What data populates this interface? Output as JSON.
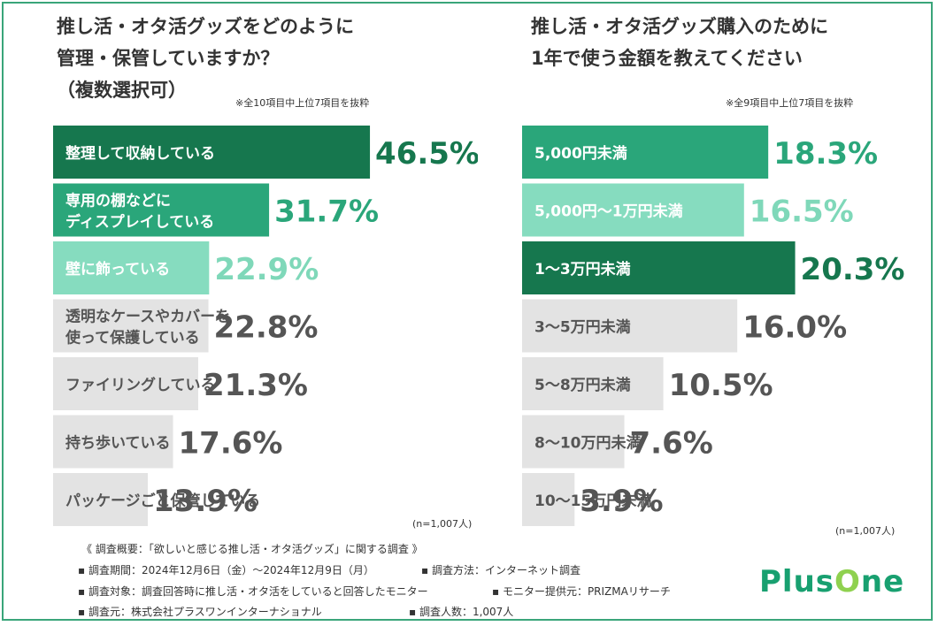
{
  "chart_data": [
    {
      "type": "bar",
      "orientation": "horizontal",
      "title": [
        "推し活・オタ活グッズをどのように",
        "管理・保管していますか？",
        "（複数選択可）"
      ],
      "note": "※全10項目中上位7項目を抜粋",
      "sample": "(n=1,007人)",
      "categories": [
        [
          "整理して収納している"
        ],
        [
          "専用の棚などに",
          "ディスプレイしている"
        ],
        [
          "壁に飾っている"
        ],
        [
          "透明なケースやカバーを",
          "使って保護している"
        ],
        [
          "ファイリングしている"
        ],
        [
          "持ち歩いている"
        ],
        [
          "パッケージごと保管している"
        ]
      ],
      "values": [
        46.5,
        31.7,
        22.9,
        22.8,
        21.3,
        17.6,
        13.9
      ],
      "value_labels": [
        "46.5%",
        "31.7%",
        "22.9%",
        "22.8%",
        "21.3%",
        "17.6%",
        "13.9%"
      ],
      "colors": [
        "#16774e",
        "#2aa67a",
        "#86dcbf",
        "#e3e3e3",
        "#e3e3e3",
        "#e3e3e3",
        "#e3e3e3"
      ],
      "label_colors": [
        "#ffffff",
        "#ffffff",
        "#ffffff",
        "#555555",
        "#555555",
        "#555555",
        "#555555"
      ],
      "value_colors": [
        "#16774e",
        "#2aa67a",
        "#7fd8b9",
        "#555555",
        "#555555",
        "#555555",
        "#555555"
      ]
    },
    {
      "type": "bar",
      "orientation": "horizontal",
      "title": [
        "推し活・オタ活グッズ購入のために",
        "1年で使う金額を教えてください"
      ],
      "note": "※全9項目中上位7項目を抜粋",
      "sample": "(n=1,007人)",
      "categories": [
        [
          "5,000円未満"
        ],
        [
          "5,000円〜1万円未満"
        ],
        [
          "1〜3万円未満"
        ],
        [
          "3〜5万円未満"
        ],
        [
          "5〜8万円未満"
        ],
        [
          "8〜10万円未満"
        ],
        [
          "10〜15万円未満"
        ]
      ],
      "values": [
        18.3,
        16.5,
        20.3,
        16.0,
        10.5,
        7.6,
        3.9
      ],
      "value_labels": [
        "18.3%",
        "16.5%",
        "20.3%",
        "16.0%",
        "10.5%",
        "7.6%",
        "3.9%"
      ],
      "colors": [
        "#2aa67a",
        "#86dcbf",
        "#16774e",
        "#e3e3e3",
        "#e3e3e3",
        "#e3e3e3",
        "#e3e3e3"
      ],
      "label_colors": [
        "#ffffff",
        "#ffffff",
        "#ffffff",
        "#555555",
        "#555555",
        "#555555",
        "#555555"
      ],
      "value_colors": [
        "#2aa67a",
        "#7fd8b9",
        "#16774e",
        "#555555",
        "#555555",
        "#555555",
        "#555555"
      ]
    }
  ],
  "footer": {
    "l1": "《 調査概要：「欲しいと感じる推し活・オタ活グッズ」に関する調査 》",
    "l2a": "▪ 調査期間：2024年12月6日（金）〜2024年12月9日（月）",
    "l2b": "▪ 調査方法：インターネット調査",
    "l3a": "▪ 調査対象：調査回答時に推し活・オタ活をしていると回答したモニター",
    "l3b": "▪ モニター提供元：PRIZMAリサーチ",
    "l4a": "▪ 調査元：株式会社プラスワンインターナショナル",
    "l4b": "▪ 調査人数：1,007人"
  },
  "logo": {
    "text_plus": "Plus",
    "text_o": "O",
    "text_ne": "ne"
  },
  "colors": {
    "frame": "#3aa57a",
    "logo": "#18a070"
  }
}
